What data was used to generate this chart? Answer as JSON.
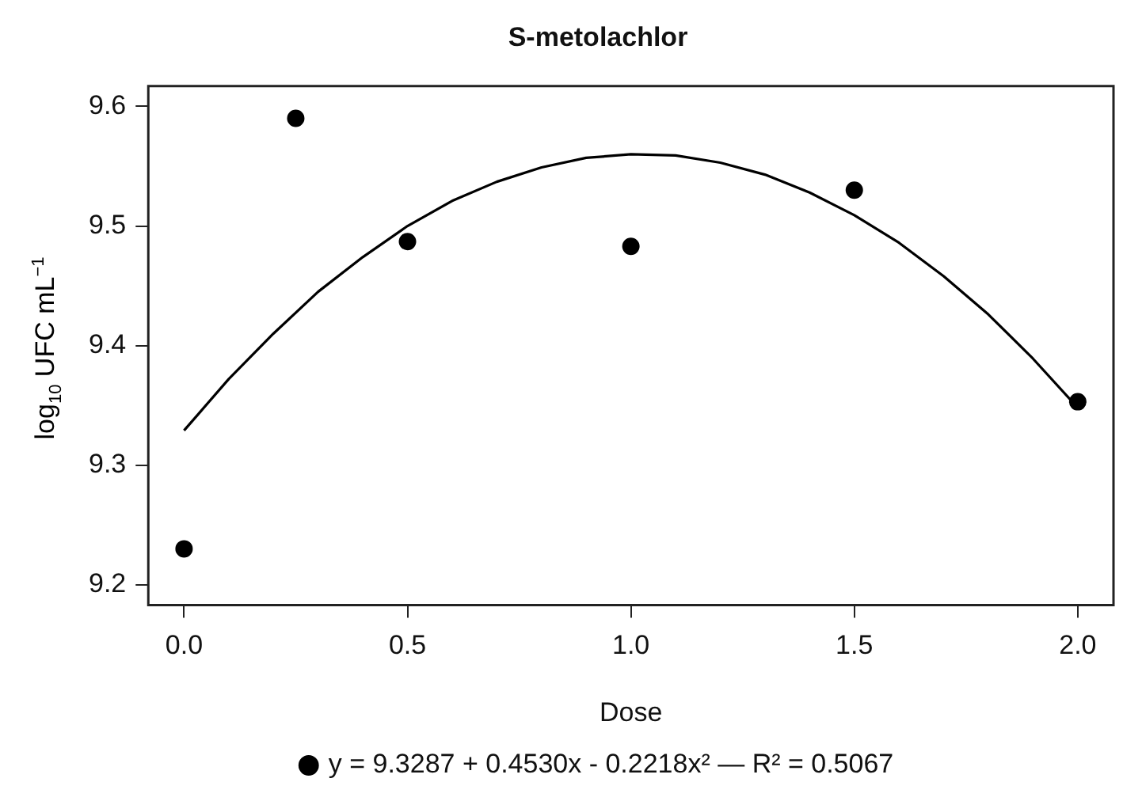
{
  "chart_data": {
    "type": "scatter",
    "title": "S-metolachlor",
    "xlabel": "Dose",
    "ylabel": "log$_{10}$ UFC mL$^{−1}$",
    "xlim": [
      -0.08,
      2.08
    ],
    "xticks": [
      {
        "value": 0,
        "label": "0.0"
      },
      {
        "value": 0.5,
        "label": "0.5"
      },
      {
        "value": 1,
        "label": "1.0"
      },
      {
        "value": 1.5,
        "label": "1.5"
      },
      {
        "value": 2,
        "label": "2.0"
      }
    ],
    "ylim": [
      9.183,
      9.617
    ],
    "yticks": [
      9.2,
      9.3,
      9.4,
      9.5,
      9.6
    ],
    "grid": false,
    "legend": "bottom",
    "series": [
      {
        "marker": "circle",
        "color": "#000000",
        "x": [
          0,
          0.25,
          0.5,
          1,
          1.5,
          2
        ],
        "values": [
          9.23,
          9.59,
          9.487,
          9.483,
          9.53,
          9.353
        ]
      },
      {
        "type": "line",
        "marker": "none",
        "name": "y = 9.3287 + 0.4530x - 0.2218x² — R² = 0.5067",
        "color": "#000000",
        "x": [
          0,
          0.1,
          0.2,
          0.3,
          0.4,
          0.5,
          0.6,
          0.7,
          0.8,
          0.9,
          1.0,
          1.1,
          1.2,
          1.3,
          1.4,
          1.5,
          1.6,
          1.7,
          1.8,
          1.9,
          2.0
        ],
        "values": [
          9.329,
          9.372,
          9.41,
          9.445,
          9.474,
          9.5,
          9.521,
          9.537,
          9.549,
          9.557,
          9.56,
          9.559,
          9.553,
          9.543,
          9.528,
          9.509,
          9.486,
          9.458,
          9.426,
          9.389,
          9.348
        ]
      }
    ]
  }
}
